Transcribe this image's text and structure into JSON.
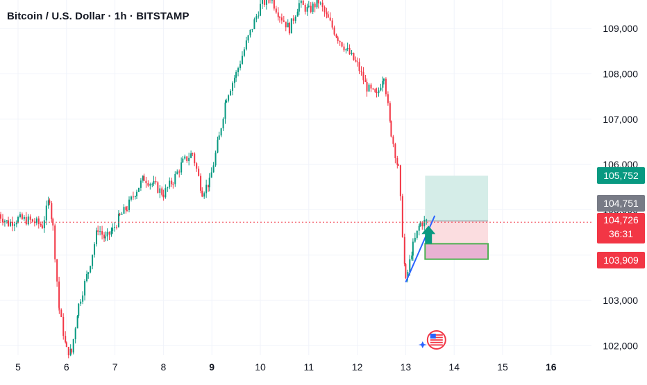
{
  "header": {
    "title": "Bitcoin / U.S. Dollar · 1h · BITSTAMP"
  },
  "colors": {
    "up": "#089981",
    "down": "#f23645",
    "grid": "#f0f3fa",
    "axis_text": "#131722",
    "target_zone": "#d5ede8",
    "stop_zone": "#fbdde0",
    "entry_box": "#e9b2d3",
    "entry_border": "#4caf50",
    "trend_line": "#2962ff",
    "arrow": "#089981"
  },
  "chart_data": {
    "type": "candlestick",
    "symbol": "BTCUSD",
    "exchange": "BITSTAMP",
    "interval": "1h",
    "x_ticks": [
      {
        "label": "5",
        "bold": false
      },
      {
        "label": "6",
        "bold": false
      },
      {
        "label": "7",
        "bold": false
      },
      {
        "label": "8",
        "bold": false
      },
      {
        "label": "9",
        "bold": true
      },
      {
        "label": "10",
        "bold": false
      },
      {
        "label": "11",
        "bold": false
      },
      {
        "label": "12",
        "bold": false
      },
      {
        "label": "13",
        "bold": false
      },
      {
        "label": "14",
        "bold": false
      },
      {
        "label": "15",
        "bold": false
      },
      {
        "label": "16",
        "bold": true
      }
    ],
    "y_ticks": [
      {
        "value": 102000,
        "label": "102,000"
      },
      {
        "value": 103000,
        "label": "103,000"
      },
      {
        "value": 104000,
        "label": "104,000"
      },
      {
        "value": 105000,
        "label": "105,000"
      },
      {
        "value": 106000,
        "label": "106,000"
      },
      {
        "value": 107000,
        "label": "107,000"
      },
      {
        "value": 108000,
        "label": "108,000"
      },
      {
        "value": 109000,
        "label": "109,000"
      }
    ],
    "ylim": [
      101800,
      109700
    ],
    "xlim_days": [
      4.5,
      17.0
    ],
    "price_path": [
      [
        4.6,
        104900
      ],
      [
        4.8,
        104700
      ],
      [
        5.0,
        104800
      ],
      [
        5.3,
        104750
      ],
      [
        5.5,
        104650
      ],
      [
        5.65,
        105250
      ],
      [
        5.72,
        104600
      ],
      [
        5.85,
        102800
      ],
      [
        6.0,
        101900
      ],
      [
        6.1,
        101850
      ],
      [
        6.25,
        102900
      ],
      [
        6.45,
        103650
      ],
      [
        6.65,
        104600
      ],
      [
        6.8,
        104350
      ],
      [
        6.95,
        104550
      ],
      [
        7.1,
        104850
      ],
      [
        7.25,
        105050
      ],
      [
        7.45,
        105450
      ],
      [
        7.6,
        105700
      ],
      [
        7.8,
        105550
      ],
      [
        8.0,
        105350
      ],
      [
        8.2,
        105650
      ],
      [
        8.4,
        106050
      ],
      [
        8.6,
        106250
      ],
      [
        8.8,
        105400
      ],
      [
        8.95,
        105600
      ],
      [
        9.15,
        106600
      ],
      [
        9.3,
        107500
      ],
      [
        9.5,
        108000
      ],
      [
        9.75,
        108800
      ],
      [
        10.0,
        109500
      ],
      [
        10.2,
        109700
      ],
      [
        10.4,
        109300
      ],
      [
        10.6,
        109000
      ],
      [
        10.8,
        109550
      ],
      [
        11.0,
        109400
      ],
      [
        11.2,
        109600
      ],
      [
        11.4,
        109200
      ],
      [
        11.6,
        108800
      ],
      [
        11.8,
        108500
      ],
      [
        12.0,
        108200
      ],
      [
        12.2,
        107700
      ],
      [
        12.4,
        107500
      ],
      [
        12.55,
        108000
      ],
      [
        12.7,
        106700
      ],
      [
        12.85,
        105900
      ],
      [
        13.0,
        103400
      ],
      [
        13.15,
        104200
      ],
      [
        13.3,
        104700
      ],
      [
        13.45,
        104750
      ]
    ],
    "current_price": {
      "value": 104726,
      "label": "104,726",
      "countdown": "36:31"
    },
    "position": {
      "take_profit": {
        "value": 105752,
        "label": "105,752"
      },
      "entry": {
        "value": 104751,
        "label": "104,751"
      },
      "stop_loss": {
        "value": 103909,
        "label": "103,909"
      },
      "entry_box_top": 104250,
      "x_start": 13.4,
      "x_end": 14.7
    },
    "trendline": {
      "from": [
        13.0,
        103400
      ],
      "to": [
        13.6,
        104870
      ]
    },
    "signal_arrow": {
      "x": 13.47,
      "price": 104250,
      "direction": "up"
    },
    "event_icon": {
      "x": 13.55,
      "name": "us-flag-icon"
    }
  }
}
